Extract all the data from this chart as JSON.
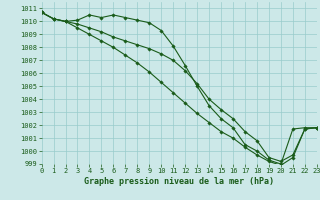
{
  "xlabel": "Graphe pression niveau de la mer (hPa)",
  "ylim": [
    999,
    1011.5
  ],
  "xlim": [
    0,
    23
  ],
  "yticks": [
    999,
    1000,
    1001,
    1002,
    1003,
    1004,
    1005,
    1006,
    1007,
    1008,
    1009,
    1010,
    1011
  ],
  "xticks": [
    0,
    1,
    2,
    3,
    4,
    5,
    6,
    7,
    8,
    9,
    10,
    11,
    12,
    13,
    14,
    15,
    16,
    17,
    18,
    19,
    20,
    21,
    22,
    23
  ],
  "bg_color": "#cce8e8",
  "grid_color": "#99cccc",
  "line_color": "#1a5c1a",
  "line1_y": [
    1010.7,
    1010.2,
    1010.0,
    1010.1,
    1010.5,
    1010.3,
    1010.5,
    1010.3,
    1010.1,
    1009.9,
    1009.3,
    1008.1,
    1006.6,
    1005.0,
    1003.5,
    1002.5,
    1001.8,
    1000.5,
    1000.0,
    999.3,
    999.0,
    1001.7,
    1001.8,
    1001.8
  ],
  "line2_y": [
    1010.7,
    1010.2,
    1010.0,
    1009.8,
    1009.5,
    1009.2,
    1008.8,
    1008.5,
    1008.2,
    1007.9,
    1007.5,
    1007.0,
    1006.2,
    1005.2,
    1004.0,
    1003.2,
    1002.5,
    1001.5,
    1000.8,
    999.5,
    999.2,
    999.7,
    1001.7,
    1001.8
  ],
  "line3_y": [
    1010.7,
    1010.2,
    1010.0,
    1009.5,
    1009.0,
    1008.5,
    1008.0,
    1007.4,
    1006.8,
    1006.1,
    1005.3,
    1004.5,
    1003.7,
    1002.9,
    1002.2,
    1001.5,
    1001.0,
    1000.3,
    999.7,
    999.2,
    998.9,
    999.5,
    1001.7,
    1001.8
  ],
  "tick_fontsize": 5.0,
  "xlabel_fontsize": 6.0,
  "marker_size": 1.8,
  "line_width": 0.8
}
